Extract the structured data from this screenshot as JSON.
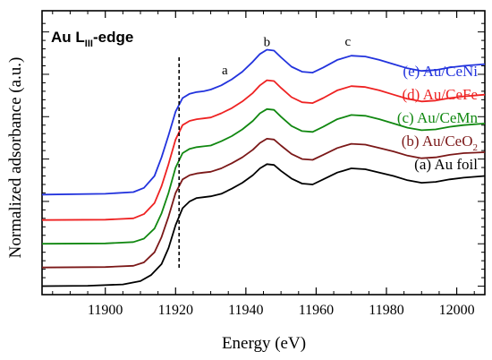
{
  "chart_data": {
    "type": "line",
    "title_main": "Au L",
    "title_sub": "III",
    "title_tail": "-edge",
    "xlabel": "Energy (eV)",
    "ylabel": "Normalized adsorbance (a.u.)",
    "xlim": [
      11882,
      12008
    ],
    "ylim": [
      -0.1,
      3.25
    ],
    "x_ticks": [
      11900,
      11920,
      11940,
      11960,
      11980,
      12000
    ],
    "x_ticklabels": [
      "11900",
      "11920",
      "11940",
      "11960",
      "11980",
      "12000"
    ],
    "grid": false,
    "legend_placement": "right",
    "edge_marker_x": 11921,
    "edge_marker_y": [
      0.2,
      2.7
    ],
    "peak_labels": [
      {
        "text": "a",
        "x": 11934,
        "y": 2.5
      },
      {
        "text": "b",
        "x": 11946,
        "y": 2.83
      },
      {
        "text": "c",
        "x": 11969,
        "y": 2.84
      }
    ],
    "series": [
      {
        "label": "(a) Au foil",
        "color": "#000000",
        "x": [
          11882,
          11895,
          11905,
          11910,
          11913,
          11916,
          11918,
          11920,
          11922,
          11924,
          11926,
          11928,
          11930,
          11933,
          11936,
          11939,
          11942,
          11944,
          11946,
          11948,
          11950,
          11953,
          11956,
          11959,
          11962,
          11966,
          11970,
          11974,
          11978,
          11982,
          11986,
          11990,
          11994,
          11998,
          12002,
          12008
        ],
        "y": [
          0.0,
          0.005,
          0.02,
          0.06,
          0.13,
          0.26,
          0.45,
          0.72,
          0.92,
          1.0,
          1.04,
          1.05,
          1.06,
          1.09,
          1.15,
          1.22,
          1.31,
          1.39,
          1.44,
          1.43,
          1.36,
          1.27,
          1.21,
          1.2,
          1.26,
          1.34,
          1.39,
          1.38,
          1.34,
          1.3,
          1.25,
          1.22,
          1.23,
          1.26,
          1.28,
          1.3
        ]
      },
      {
        "label": "(b) Au/CeO",
        "label_sub": "2",
        "color": "#7b1818",
        "x": [
          11882,
          11900,
          11908,
          11911,
          11914,
          11916,
          11918,
          11920,
          11922,
          11924,
          11926,
          11928,
          11930,
          11933,
          11936,
          11939,
          11942,
          11944,
          11946,
          11948,
          11950,
          11953,
          11956,
          11959,
          11962,
          11966,
          11970,
          11974,
          11978,
          11982,
          11986,
          11990,
          11994,
          11998,
          12002,
          12008
        ],
        "y": [
          0.22,
          0.225,
          0.24,
          0.28,
          0.4,
          0.58,
          0.82,
          1.1,
          1.26,
          1.31,
          1.33,
          1.34,
          1.35,
          1.39,
          1.45,
          1.52,
          1.61,
          1.69,
          1.74,
          1.73,
          1.66,
          1.56,
          1.5,
          1.49,
          1.55,
          1.63,
          1.68,
          1.67,
          1.63,
          1.59,
          1.54,
          1.51,
          1.52,
          1.55,
          1.57,
          1.58
        ]
      },
      {
        "label": "(c) Au/CeMn",
        "color": "#118811",
        "x": [
          11882,
          11900,
          11908,
          11911,
          11914,
          11916,
          11918,
          11920,
          11922,
          11924,
          11926,
          11928,
          11930,
          11933,
          11936,
          11939,
          11942,
          11944,
          11946,
          11948,
          11950,
          11953,
          11956,
          11959,
          11962,
          11966,
          11970,
          11974,
          11978,
          11982,
          11986,
          11990,
          11994,
          11998,
          12002,
          12008
        ],
        "y": [
          0.5,
          0.505,
          0.52,
          0.56,
          0.68,
          0.86,
          1.1,
          1.4,
          1.57,
          1.62,
          1.64,
          1.65,
          1.66,
          1.71,
          1.77,
          1.85,
          1.95,
          2.04,
          2.09,
          2.08,
          2.0,
          1.89,
          1.83,
          1.82,
          1.88,
          1.97,
          2.02,
          2.01,
          1.97,
          1.92,
          1.87,
          1.84,
          1.85,
          1.88,
          1.9,
          1.92
        ]
      },
      {
        "label": "(d) Au/CeFe",
        "color": "#ee2222",
        "x": [
          11882,
          11900,
          11908,
          11911,
          11914,
          11916,
          11918,
          11920,
          11922,
          11924,
          11926,
          11928,
          11930,
          11933,
          11936,
          11939,
          11942,
          11944,
          11946,
          11948,
          11950,
          11953,
          11956,
          11959,
          11962,
          11966,
          11970,
          11974,
          11978,
          11982,
          11986,
          11990,
          11994,
          11998,
          12002,
          12008
        ],
        "y": [
          0.78,
          0.785,
          0.8,
          0.85,
          0.98,
          1.18,
          1.44,
          1.73,
          1.9,
          1.95,
          1.97,
          1.98,
          1.99,
          2.04,
          2.1,
          2.18,
          2.28,
          2.37,
          2.43,
          2.42,
          2.34,
          2.23,
          2.17,
          2.16,
          2.22,
          2.31,
          2.36,
          2.35,
          2.31,
          2.26,
          2.21,
          2.18,
          2.19,
          2.22,
          2.24,
          2.26
        ]
      },
      {
        "label": "(e) Au/CeNi",
        "color": "#2233dd",
        "x": [
          11882,
          11900,
          11908,
          11911,
          11914,
          11916,
          11918,
          11920,
          11922,
          11924,
          11926,
          11928,
          11930,
          11933,
          11936,
          11939,
          11942,
          11944,
          11946,
          11948,
          11950,
          11953,
          11956,
          11959,
          11962,
          11966,
          11970,
          11974,
          11978,
          11982,
          11986,
          11990,
          11994,
          11998,
          12002,
          12008
        ],
        "y": [
          1.08,
          1.09,
          1.11,
          1.16,
          1.3,
          1.52,
          1.78,
          2.06,
          2.22,
          2.27,
          2.29,
          2.3,
          2.32,
          2.37,
          2.44,
          2.53,
          2.65,
          2.74,
          2.79,
          2.78,
          2.7,
          2.59,
          2.53,
          2.52,
          2.58,
          2.67,
          2.72,
          2.71,
          2.67,
          2.62,
          2.57,
          2.54,
          2.55,
          2.58,
          2.6,
          2.62
        ]
      }
    ]
  }
}
